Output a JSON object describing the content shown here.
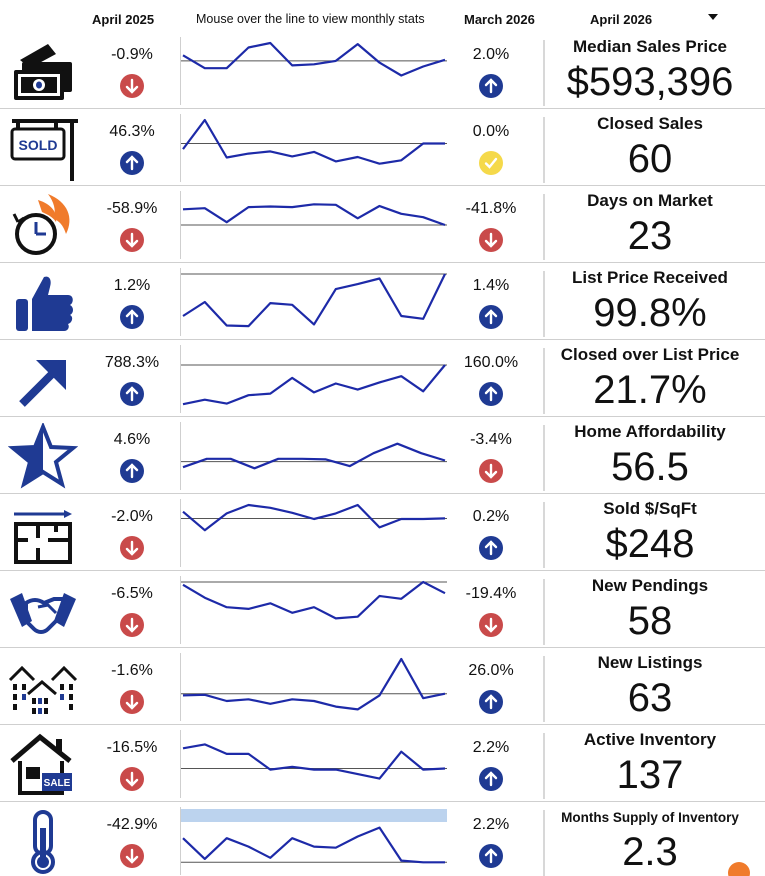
{
  "header": {
    "prev_period": "April 2025",
    "hint": "Mouse over the line to view monthly stats",
    "curr_period": "March 2026",
    "selected_period": "April 2026"
  },
  "colors": {
    "up": "#1f3a93",
    "down": "#c94a4a",
    "flat": "#f5d94a",
    "spark_line": "#1d2aa8",
    "hover_band": "#bcd3ee"
  },
  "metrics": [
    {
      "icon": "cash-icon",
      "label": "Median Sales Price",
      "value": "$593,396",
      "prev_pct": "-0.9%",
      "prev_dir": "down",
      "curr_pct": "2.0%",
      "curr_dir": "up",
      "spark": [
        0.78,
        0.55,
        0.55,
        0.92,
        1.0,
        0.6,
        0.62,
        0.68,
        0.98,
        0.65,
        0.42,
        0.58,
        0.7
      ],
      "baseline": 0.68
    },
    {
      "icon": "sold-sign-icon",
      "label": "Closed Sales",
      "value": "60",
      "prev_pct": "46.3%",
      "prev_dir": "up",
      "curr_pct": "0.0%",
      "curr_dir": "flat",
      "spark": [
        0.48,
        1.0,
        0.33,
        0.4,
        0.44,
        0.35,
        0.43,
        0.26,
        0.34,
        0.22,
        0.28,
        0.58,
        0.58
      ],
      "baseline": 0.58
    },
    {
      "icon": "clock-fire-icon",
      "label": "Days on Market",
      "value": "23",
      "prev_pct": "-58.9%",
      "prev_dir": "down",
      "curr_pct": "-41.8%",
      "curr_dir": "down",
      "spark": [
        0.78,
        0.8,
        0.55,
        0.82,
        0.83,
        0.82,
        0.87,
        0.86,
        0.62,
        0.84,
        0.7,
        0.64,
        0.5
      ],
      "baseline": 0.5
    },
    {
      "icon": "thumbs-up-icon",
      "label": "List Price Received",
      "value": "99.8%",
      "prev_pct": "1.2%",
      "prev_dir": "up",
      "curr_pct": "1.4%",
      "curr_dir": "up",
      "spark": [
        0.25,
        0.5,
        0.08,
        0.07,
        0.48,
        0.45,
        0.1,
        0.73,
        0.82,
        0.92,
        0.25,
        0.2,
        1.0
      ],
      "baseline": 1.0
    },
    {
      "icon": "up-arrow-icon",
      "label": "Closed over List Price",
      "value": "21.7%",
      "prev_pct": "788.3%",
      "prev_dir": "up",
      "curr_pct": "160.0%",
      "curr_dir": "up",
      "spark": [
        0.05,
        0.13,
        0.06,
        0.21,
        0.24,
        0.52,
        0.26,
        0.42,
        0.31,
        0.44,
        0.55,
        0.28,
        0.75
      ],
      "baseline": 0.75
    },
    {
      "icon": "star-icon",
      "label": "Home Affordability",
      "value": "56.5",
      "prev_pct": "4.6%",
      "prev_dir": "up",
      "curr_pct": "-3.4%",
      "curr_dir": "down",
      "spark": [
        0.3,
        0.45,
        0.45,
        0.28,
        0.45,
        0.45,
        0.44,
        0.32,
        0.55,
        0.72,
        0.55,
        0.42
      ],
      "baseline": 0.4
    },
    {
      "icon": "floor-plan-icon",
      "label": "Sold $/SqFt",
      "value": "$248",
      "prev_pct": "-2.0%",
      "prev_dir": "down",
      "curr_pct": "0.2%",
      "curr_dir": "up",
      "spark": [
        0.88,
        0.55,
        0.85,
        1.0,
        0.95,
        0.86,
        0.75,
        0.85,
        1.0,
        0.6,
        0.75,
        0.75,
        0.76
      ],
      "baseline": 0.76
    },
    {
      "icon": "handshake-icon",
      "label": "New Pendings",
      "value": "58",
      "prev_pct": "-6.5%",
      "prev_dir": "down",
      "curr_pct": "-19.4%",
      "curr_dir": "down",
      "spark": [
        0.95,
        0.72,
        0.55,
        0.52,
        0.62,
        0.45,
        0.55,
        0.35,
        0.38,
        0.75,
        0.7,
        1.0,
        0.8
      ],
      "baseline": 1.0
    },
    {
      "icon": "houses-icon",
      "label": "New Listings",
      "value": "63",
      "prev_pct": "-1.6%",
      "prev_dir": "down",
      "curr_pct": "26.0%",
      "curr_dir": "up",
      "spark": [
        0.35,
        0.36,
        0.25,
        0.28,
        0.2,
        0.28,
        0.25,
        0.15,
        0.1,
        0.35,
        1.0,
        0.3,
        0.38
      ],
      "baseline": 0.38
    },
    {
      "icon": "house-sale-icon",
      "label": "Active Inventory",
      "value": "137",
      "prev_pct": "-16.5%",
      "prev_dir": "down",
      "curr_pct": "2.2%",
      "curr_dir": "up",
      "spark": [
        0.78,
        0.85,
        0.68,
        0.68,
        0.4,
        0.45,
        0.4,
        0.4,
        0.32,
        0.24,
        0.72,
        0.4,
        0.42
      ],
      "baseline": 0.42
    },
    {
      "icon": "thermometer-icon",
      "label": "Months Supply of Inventory",
      "value": "2.3",
      "prev_pct": "-42.9%",
      "prev_dir": "down",
      "curr_pct": "2.2%",
      "curr_dir": "up",
      "spark": [
        0.55,
        0.18,
        0.55,
        0.4,
        0.2,
        0.55,
        0.4,
        0.38,
        0.58,
        0.74,
        0.15,
        0.12,
        0.12
      ],
      "baseline": 0.12,
      "highlight": true
    }
  ]
}
